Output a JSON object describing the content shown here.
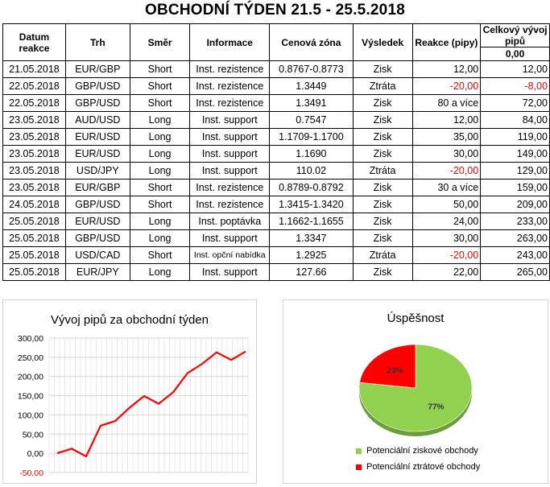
{
  "title": "OBCHODNÍ TÝDEN 21.5 - 25.5.2018",
  "table": {
    "headers": {
      "date": "Datum reakce",
      "market": "Trh",
      "direction": "Směr",
      "info": "Informace",
      "zone": "Cenová zóna",
      "result": "Výsledek",
      "reaction": "Reakce (pipy)",
      "total": "Celkový vývoj pipů",
      "total_start": "0,00"
    },
    "rows": [
      {
        "date": "21.05.2018",
        "market": "EUR/GBP",
        "direction": "Short",
        "info": "Inst. rezistence",
        "zone": "0.8767-0.8773",
        "result": "Zisk",
        "reaction": "12,00",
        "total": "12,00",
        "reaction_neg": false,
        "total_neg": false
      },
      {
        "date": "22.05.2018",
        "market": "GBP/USD",
        "direction": "Short",
        "info": "Inst. rezistence",
        "zone": "1.3449",
        "result": "Ztráta",
        "reaction": "-20,00",
        "total": "-8,00",
        "reaction_neg": true,
        "total_neg": true
      },
      {
        "date": "22.05.2018",
        "market": "GBP/USD",
        "direction": "Short",
        "info": "Inst. rezistence",
        "zone": "1.3491",
        "result": "Zisk",
        "reaction": "80 a více",
        "total": "72,00",
        "reaction_neg": false,
        "total_neg": false
      },
      {
        "date": "23.05.2018",
        "market": "AUD/USD",
        "direction": "Long",
        "info": "Inst. support",
        "zone": "0.7547",
        "result": "Zisk",
        "reaction": "12,00",
        "total": "84,00",
        "reaction_neg": false,
        "total_neg": false
      },
      {
        "date": "23.05.2018",
        "market": "EUR/USD",
        "direction": "Long",
        "info": "Inst. support",
        "zone": "1.1709-1.1700",
        "result": "Zisk",
        "reaction": "35,00",
        "total": "119,00",
        "reaction_neg": false,
        "total_neg": false
      },
      {
        "date": "23.05.2018",
        "market": "EUR/USD",
        "direction": "Long",
        "info": "Inst. support",
        "zone": "1.1690",
        "result": "Zisk",
        "reaction": "30,00",
        "total": "149,00",
        "reaction_neg": false,
        "total_neg": false
      },
      {
        "date": "23.05.2018",
        "market": "USD/JPY",
        "direction": "Long",
        "info": "Inst. support",
        "zone": "110.02",
        "result": "Ztráta",
        "reaction": "-20,00",
        "total": "129,00",
        "reaction_neg": true,
        "total_neg": false
      },
      {
        "date": "23.05.2018",
        "market": "EUR/GBP",
        "direction": "Short",
        "info": "Inst. rezistence",
        "zone": "0.8789-0.8792",
        "result": "Zisk",
        "reaction": "30 a více",
        "total": "159,00",
        "reaction_neg": false,
        "total_neg": false
      },
      {
        "date": "24.05.2018",
        "market": "GBP/USD",
        "direction": "Short",
        "info": "Inst. rezistence",
        "zone": "1.3415-1.3420",
        "result": "Zisk",
        "reaction": "50,00",
        "total": "209,00",
        "reaction_neg": false,
        "total_neg": false
      },
      {
        "date": "25.05.2018",
        "market": "EUR/USD",
        "direction": "Long",
        "info": "Inst. poptávka",
        "zone": "1.1662-1.1655",
        "result": "Zisk",
        "reaction": "24,00",
        "total": "233,00",
        "reaction_neg": false,
        "total_neg": false
      },
      {
        "date": "25.05.2018",
        "market": "GBP/USD",
        "direction": "Long",
        "info": "Inst. support",
        "zone": "1.3347",
        "result": "Zisk",
        "reaction": "30,00",
        "total": "263,00",
        "reaction_neg": false,
        "total_neg": false
      },
      {
        "date": "25.05.2018",
        "market": "USD/CAD",
        "direction": "Short",
        "info": "Inst. opční nabídka",
        "zone": "1.2925",
        "result": "Ztráta",
        "reaction": "-20,00",
        "total": "243,00",
        "reaction_neg": true,
        "total_neg": false
      },
      {
        "date": "25.05.2018",
        "market": "EUR/JPY",
        "direction": "Long",
        "info": "Inst. support",
        "zone": "127.66",
        "result": "Zisk",
        "reaction": "22,00",
        "total": "265,00",
        "reaction_neg": false,
        "total_neg": false
      }
    ]
  },
  "chart_data": [
    {
      "type": "line",
      "title": "Vývoj pipů za obchodní týden",
      "xlabel": "",
      "ylabel": "",
      "ylim": [
        -50,
        300
      ],
      "yticks": [
        "-50,00",
        "0,00",
        "50,00",
        "100,00",
        "150,00",
        "200,00",
        "250,00",
        "300,00"
      ],
      "ytick_values": [
        -50,
        0,
        50,
        100,
        150,
        200,
        250,
        300
      ],
      "grid": true,
      "series": [
        {
          "values": [
            0,
            12,
            -8,
            72,
            84,
            119,
            149,
            129,
            159,
            209,
            233,
            263,
            243,
            265
          ],
          "color": "#ff0000"
        }
      ]
    },
    {
      "type": "pie",
      "title": "Úspěšnost",
      "slices": [
        {
          "label": "Potenciální ziskové obchody",
          "value": 77,
          "display": "77%",
          "color": "#92d050"
        },
        {
          "label": "Potenciální ztrátové obchody",
          "value": 23,
          "display": "23%",
          "color": "#ff0000"
        }
      ],
      "legend": "bottom"
    }
  ]
}
